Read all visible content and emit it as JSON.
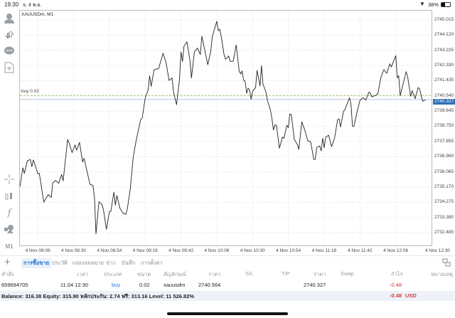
{
  "status_bar": {
    "time": "19:30",
    "date": "จ. 4 พ.ย.",
    "battery": "38%",
    "icons": [
      "wifi-icon",
      "battery-icon"
    ]
  },
  "chart": {
    "symbol_label": "XAUUSDm, M1",
    "buy_line_label": "buy 0.02",
    "current_price_label": "2740.327"
  },
  "colors": {
    "accent": "#2a74c9",
    "loss": "#e0393e",
    "buy_line": "#8fc46a",
    "price_line": "#9bb3cf",
    "price_label_bg": "#2f6fb4"
  },
  "left_toolbar": [
    {
      "icon": "account-icon"
    },
    {
      "icon": "trade-arrows-icon"
    },
    {
      "icon": "chat-icon"
    },
    {
      "icon": "new-document-icon"
    },
    {
      "icon": "crosshair-icon"
    },
    {
      "icon": "indicators-icon"
    },
    {
      "icon": "function-icon"
    },
    {
      "icon": "objects-icon"
    },
    {
      "icon": "timeframe-icon",
      "label": "M1"
    }
  ],
  "tabs": {
    "add_icon": "plus-icon",
    "items": [
      {
        "label": "การซื้อขาย",
        "active": true
      },
      {
        "label": "ประวัติ"
      },
      {
        "label": "กล่องจดหมาย"
      },
      {
        "label": "ข่าว"
      },
      {
        "label": "บันทึก"
      },
      {
        "label": "การตั้งค่า"
      }
    ],
    "layout_icon": "split-view-icon"
  },
  "table": {
    "headers": [
      "คำสั่ง",
      "เวลา",
      "ประเภท",
      "ขนาด",
      "สัญลักษณ์",
      "ราคา",
      "S/L",
      "T/P",
      "ราคา",
      "Swap",
      "กำไร",
      "หมายเหตุ"
    ],
    "rows": [
      {
        "order": "659694705",
        "time": "11.04 12:30",
        "type": "buy",
        "size": "0.02",
        "symbol": "xauusdm",
        "open_price": "2740.564",
        "sl": "",
        "tp": "",
        "price": "2740.327",
        "swap": "",
        "profit": "-0.48",
        "comment": ""
      }
    ],
    "balance_line": "Balance: 316.38 Equity: 315.90 หลักประกัน: 2.74 ฟรี: 313.16 Level: 11 526.82%",
    "total_profit": "-0.48",
    "currency": "USD"
  },
  "chart_data": {
    "type": "line",
    "title": "XAUUSDm, M1",
    "date": "4 Nov",
    "xlim": [
      "07:54",
      "12:30"
    ],
    "ylim": [
      2731.73,
      2745.56
    ],
    "grid": true,
    "y_ticks": [
      "2745.015",
      "2744.120",
      "2743.225",
      "2742.330",
      "2741.435",
      "2740.540",
      "2739.645",
      "2738.750",
      "2737.855",
      "2736.960",
      "2736.065",
      "2735.170",
      "2734.275",
      "2733.380",
      "2732.485"
    ],
    "x_ticks": [
      "4 Nov 08:06",
      "4 Nov 08:30",
      "4 Nov 08:54",
      "4 Nov 09:18",
      "4 Nov 09:42",
      "4 Nov 10:06",
      "4 Nov 10:30",
      "4 Nov 10:54",
      "4 Nov 11:18",
      "4 Nov 11:42",
      "4 Nov 12:06",
      "4 Nov 12:30"
    ],
    "horizontal_lines": [
      {
        "label": "buy 0.02",
        "price": 2740.564
      },
      {
        "label": "2740.327",
        "price": 2740.327
      }
    ],
    "points": [
      [
        "07:54",
        2735.19
      ],
      [
        "07:56",
        2736.3
      ],
      [
        "07:57",
        2735.98
      ],
      [
        "07:59",
        2736.72
      ],
      [
        "08:01",
        2736.79
      ],
      [
        "08:02",
        2736.37
      ],
      [
        "08:03",
        2736.76
      ],
      [
        "08:04",
        2736.51
      ],
      [
        "08:06",
        2735.95
      ],
      [
        "08:07",
        2735.98
      ],
      [
        "08:10",
        2734.28
      ],
      [
        "08:13",
        2734.73
      ],
      [
        "08:15",
        2734.56
      ],
      [
        "08:16",
        2735.42
      ],
      [
        "08:18",
        2735.56
      ],
      [
        "08:20",
        2735.39
      ],
      [
        "08:22",
        2735.91
      ],
      [
        "08:23",
        2735.53
      ],
      [
        "08:26",
        2737.97
      ],
      [
        "08:27",
        2737.76
      ],
      [
        "08:29",
        2737.2
      ],
      [
        "08:31",
        2737.65
      ],
      [
        "08:32",
        2737.34
      ],
      [
        "08:34",
        2737.8
      ],
      [
        "08:36",
        2736.65
      ],
      [
        "08:37",
        2736.86
      ],
      [
        "08:41",
        2735.33
      ],
      [
        "08:43",
        2735.26
      ],
      [
        "08:44",
        2734.56
      ],
      [
        "08:45",
        2732.4
      ],
      [
        "08:47",
        2734.31
      ],
      [
        "08:49",
        2734.14
      ],
      [
        "08:50",
        2733.84
      ],
      [
        "08:52",
        2732.68
      ],
      [
        "08:54",
        2733.72
      ],
      [
        "08:55",
        2733.75
      ],
      [
        "08:57",
        2734.87
      ],
      [
        "08:58",
        2734.1
      ],
      [
        "08:59",
        2734.67
      ],
      [
        "09:01",
        2733.93
      ],
      [
        "09:03",
        2733.65
      ],
      [
        "09:05",
        2733.56
      ],
      [
        "09:06",
        2733.86
      ],
      [
        "09:08",
        2735.05
      ],
      [
        "09:10",
        2736.93
      ],
      [
        "09:12",
        2737.93
      ],
      [
        "09:15",
        2739.15
      ],
      [
        "09:16",
        2739.22
      ],
      [
        "09:18",
        2740.41
      ],
      [
        "09:20",
        2740.89
      ],
      [
        "09:21",
        2741.73
      ],
      [
        "09:22",
        2741.1
      ],
      [
        "09:24",
        2742.08
      ],
      [
        "09:25",
        2742.11
      ],
      [
        "09:27",
        2742.15
      ],
      [
        "09:30",
        2743.05
      ],
      [
        "09:32",
        2742.5
      ],
      [
        "09:34",
        2741.45
      ],
      [
        "09:36",
        2741.59
      ],
      [
        "09:37",
        2740.76
      ],
      [
        "09:39",
        2740.02
      ],
      [
        "09:41",
        2741.52
      ],
      [
        "09:42",
        2743.12
      ],
      [
        "09:43",
        2742.57
      ],
      [
        "09:44",
        2743.47
      ],
      [
        "09:46",
        2743.72
      ],
      [
        "09:48",
        2742.63
      ],
      [
        "09:49",
        2741.59
      ],
      [
        "09:51",
        2743.12
      ],
      [
        "09:53",
        2743.36
      ],
      [
        "09:55",
        2742.98
      ],
      [
        "09:56",
        2744.05
      ],
      [
        "09:58",
        2743.22
      ],
      [
        "10:00",
        2742.38
      ],
      [
        "10:02",
        2743.19
      ],
      [
        "10:03",
        2744.03
      ],
      [
        "10:06",
        2744.93
      ],
      [
        "10:07",
        2744.38
      ],
      [
        "10:08",
        2744.47
      ],
      [
        "10:09",
        2744.03
      ],
      [
        "10:11",
        2742.91
      ],
      [
        "10:12",
        2742.7
      ],
      [
        "10:14",
        2742.89
      ],
      [
        "10:15",
        2742.57
      ],
      [
        "10:17",
        2742.57
      ],
      [
        "10:19",
        2743.54
      ],
      [
        "10:21",
        2742.01
      ],
      [
        "10:22",
        2741.83
      ],
      [
        "10:23",
        2742.01
      ],
      [
        "10:24",
        2741.45
      ],
      [
        "10:25",
        2741.41
      ],
      [
        "10:26",
        2740.69
      ],
      [
        "10:27",
        2740.99
      ],
      [
        "10:28",
        2740.89
      ],
      [
        "10:29",
        2740.34
      ],
      [
        "10:30",
        2740.82
      ],
      [
        "10:32",
        2741.03
      ],
      [
        "10:33",
        2742.04
      ],
      [
        "10:35",
        2741.13
      ],
      [
        "10:36",
        2742.33
      ],
      [
        "10:37",
        2741.24
      ],
      [
        "10:39",
        2740.76
      ],
      [
        "10:40",
        2740.27
      ],
      [
        "10:42",
        2739.71
      ],
      [
        "10:43",
        2739.22
      ],
      [
        "10:44",
        2738.53
      ],
      [
        "10:45",
        2738.83
      ],
      [
        "10:46",
        2738.81
      ],
      [
        "10:48",
        2737.46
      ],
      [
        "10:49",
        2737.76
      ],
      [
        "10:50",
        2738.11
      ],
      [
        "10:51",
        2738.04
      ],
      [
        "10:53",
        2738.81
      ],
      [
        "10:54",
        2738.67
      ],
      [
        "10:55",
        2739.47
      ],
      [
        "10:56",
        2739.43
      ],
      [
        "10:58",
        2737.97
      ],
      [
        "11:00",
        2737.69
      ],
      [
        "11:01",
        2737.39
      ],
      [
        "11:03",
        2739.01
      ],
      [
        "11:05",
        2738.53
      ],
      [
        "11:07",
        2737.9
      ],
      [
        "11:09",
        2737.83
      ],
      [
        "11:11",
        2736.79
      ],
      [
        "11:12",
        2736.81
      ],
      [
        "11:13",
        2737.51
      ],
      [
        "11:15",
        2737.59
      ],
      [
        "11:16",
        2737.3
      ],
      [
        "11:17",
        2738.04
      ],
      [
        "11:18",
        2737.48
      ],
      [
        "11:19",
        2738.11
      ],
      [
        "11:21",
        2738.22
      ],
      [
        "11:23",
        2737.55
      ],
      [
        "11:25",
        2738.04
      ],
      [
        "11:27",
        2739.13
      ],
      [
        "11:28",
        2739.18
      ],
      [
        "11:29",
        2738.71
      ],
      [
        "11:31",
        2739.64
      ],
      [
        "11:32",
        2739.74
      ],
      [
        "11:35",
        2740.43
      ],
      [
        "11:36",
        2740.06
      ],
      [
        "11:37",
        2738.74
      ],
      [
        "11:38",
        2738.74
      ],
      [
        "11:40",
        2739.57
      ],
      [
        "11:42",
        2740.27
      ],
      [
        "11:44",
        2740.43
      ],
      [
        "11:46",
        2740.3
      ],
      [
        "11:48",
        2740.76
      ],
      [
        "11:49",
        2740.69
      ],
      [
        "11:50",
        2740.48
      ],
      [
        "11:52",
        2740.55
      ],
      [
        "11:54",
        2740.66
      ],
      [
        "11:56",
        2741.62
      ],
      [
        "11:58",
        2742.08
      ],
      [
        "12:00",
        2741.87
      ],
      [
        "12:02",
        2742.43
      ],
      [
        "12:03",
        2742.24
      ],
      [
        "12:06",
        2742.91
      ],
      [
        "12:07",
        2741.59
      ],
      [
        "12:08",
        2741.73
      ],
      [
        "12:09",
        2740.55
      ],
      [
        "12:13",
        2741.97
      ],
      [
        "12:14",
        2741.66
      ],
      [
        "12:16",
        2740.52
      ],
      [
        "12:17",
        2740.85
      ],
      [
        "12:19",
        2740.38
      ],
      [
        "12:21",
        2741.03
      ],
      [
        "12:22",
        2740.96
      ],
      [
        "12:24",
        2740.23
      ],
      [
        "12:26",
        2740.3
      ]
    ]
  }
}
